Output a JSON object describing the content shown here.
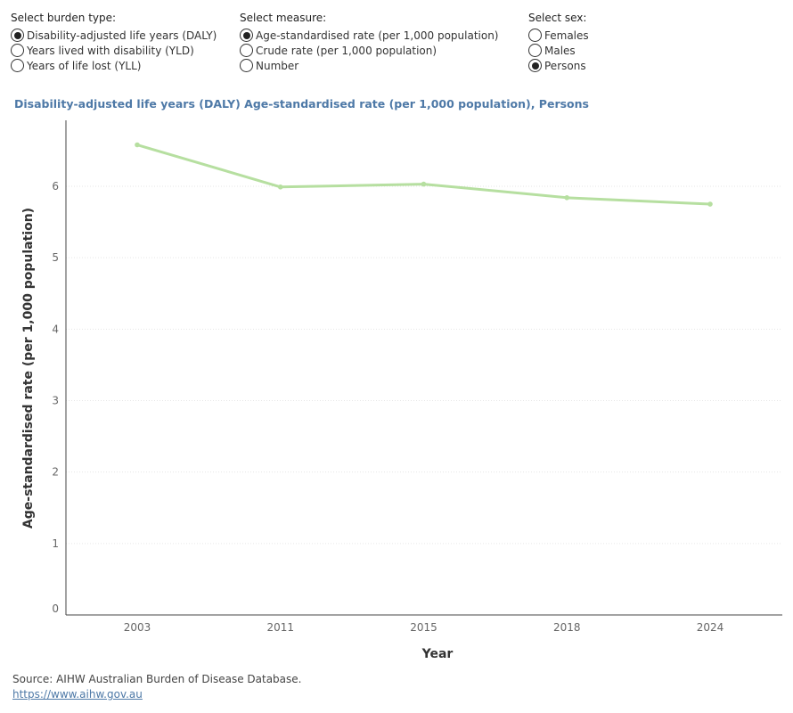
{
  "filters": {
    "burden": {
      "title": "Select burden type:",
      "options": [
        {
          "label": "Disability-adjusted life years (DALY)",
          "selected": true
        },
        {
          "label": "Years lived with disability (YLD)",
          "selected": false
        },
        {
          "label": "Years of life lost (YLL)",
          "selected": false
        }
      ]
    },
    "measure": {
      "title": "Select measure:",
      "options": [
        {
          "label": "Age-standardised rate (per 1,000 population)",
          "selected": true
        },
        {
          "label": "Crude rate (per 1,000 population)",
          "selected": false
        },
        {
          "label": "Number",
          "selected": false
        }
      ]
    },
    "sex": {
      "title": "Select sex:",
      "options": [
        {
          "label": "Females",
          "selected": false
        },
        {
          "label": "Males",
          "selected": false
        },
        {
          "label": "Persons",
          "selected": true
        }
      ]
    }
  },
  "chart_data": {
    "type": "line",
    "title": "Disability-adjusted life years (DALY) Age-standardised rate (per 1,000 population), Persons",
    "xlabel": "Year",
    "ylabel": "Age-standardised rate (per 1,000 population)",
    "categories": [
      "2003",
      "2011",
      "2015",
      "2018",
      "2024"
    ],
    "series": [
      {
        "values": [
          6.58,
          5.99,
          6.03,
          5.84,
          5.75
        ]
      }
    ],
    "ylim": [
      0,
      7
    ],
    "yticks": [
      "0",
      "1",
      "2",
      "3",
      "4",
      "5",
      "6"
    ],
    "grid": "horizontal dotted",
    "line_color": "#b6dfa0"
  },
  "footer": {
    "source": "Source: AIHW Australian Burden of Disease Database.",
    "link": "https://www.aihw.gov.au"
  }
}
